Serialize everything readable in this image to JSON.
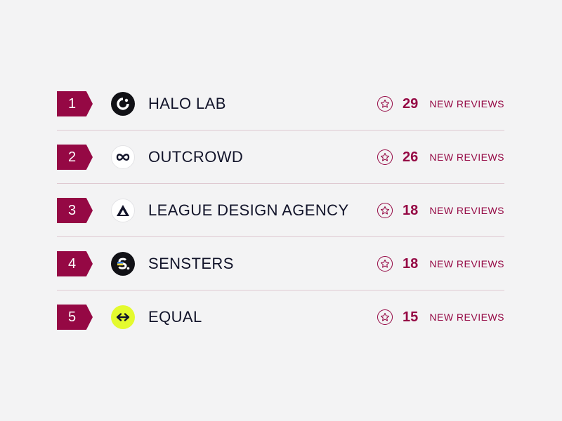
{
  "accent_color": "#950844",
  "rows": [
    {
      "rank": "1",
      "company": "HALO LAB",
      "logo_icon": "halo-lab-logo-icon",
      "count": "29",
      "label": "NEW REVIEWS"
    },
    {
      "rank": "2",
      "company": "OUTCROWD",
      "logo_icon": "outcrowd-logo-icon",
      "count": "26",
      "label": "NEW REVIEWS"
    },
    {
      "rank": "3",
      "company": "LEAGUE DESIGN AGENCY",
      "logo_icon": "league-logo-icon",
      "count": "18",
      "label": "NEW REVIEWS"
    },
    {
      "rank": "4",
      "company": "SENSTERS",
      "logo_icon": "sensters-logo-icon",
      "count": "18",
      "label": "NEW REVIEWS"
    },
    {
      "rank": "5",
      "company": "EQUAL",
      "logo_icon": "equal-logo-icon",
      "count": "15",
      "label": "NEW REVIEWS"
    }
  ]
}
